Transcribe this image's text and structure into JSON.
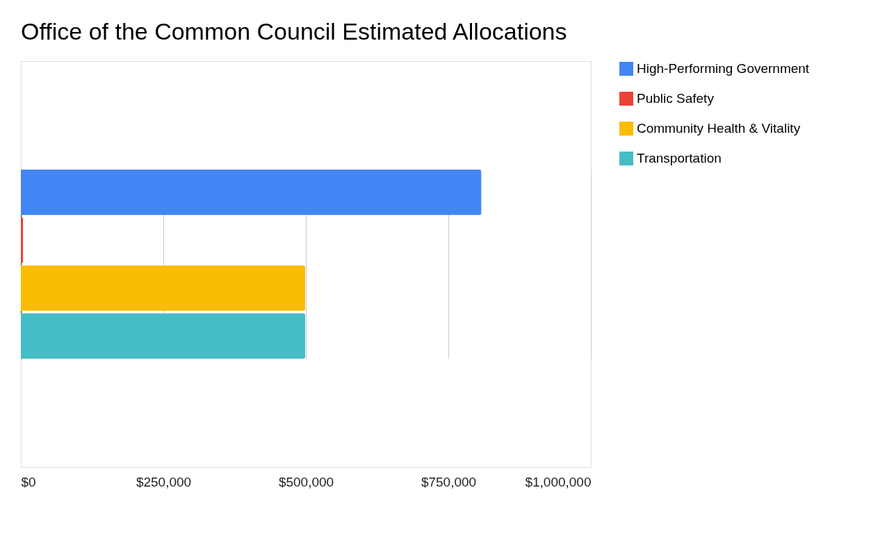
{
  "chart_data": {
    "type": "bar",
    "orientation": "horizontal",
    "title": "Office of the Common Council Estimated Allocations",
    "categories": [
      null
    ],
    "series": [
      {
        "name": "High-Performing Government",
        "color": "#4285f4",
        "values": [
          808000
        ]
      },
      {
        "name": "Public Safety",
        "color": "#ea4335",
        "values": [
          4000
        ]
      },
      {
        "name": "Community Health & Vitality",
        "color": "#fbbc04",
        "values": [
          499000
        ]
      },
      {
        "name": "Transportation",
        "color": "#46bdc6",
        "values": [
          499000
        ]
      }
    ],
    "xlim": [
      0,
      1000000
    ],
    "xticks": [
      {
        "value": 0,
        "label": "$0"
      },
      {
        "value": 250000,
        "label": "$250,000"
      },
      {
        "value": 500000,
        "label": "$500,000"
      },
      {
        "value": 750000,
        "label": "$750,000"
      },
      {
        "value": 1000000,
        "label": "$1,000,000"
      }
    ],
    "grid": "x",
    "legend": "top right",
    "tick_labels": "x"
  }
}
